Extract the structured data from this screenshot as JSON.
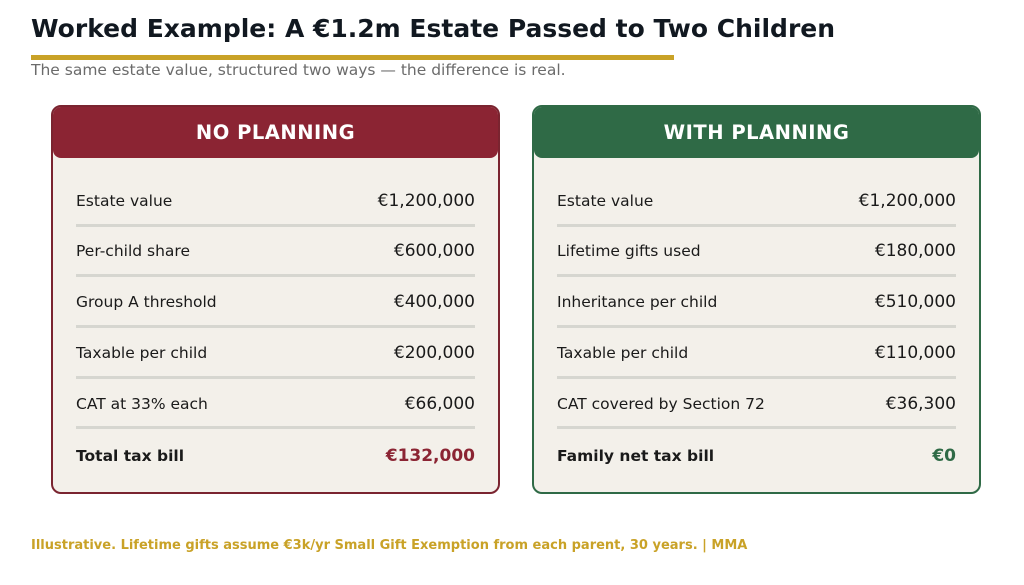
{
  "title": "Worked Example: A €1.2m Estate Passed to Two Children",
  "subtitle": "The same estate value, structured two ways — the difference is real.",
  "colors": {
    "accent_gold": "#c9a227",
    "no_planning_red": "#8b2433",
    "with_planning_green": "#2f6a46",
    "card_background": "#f3f0ea"
  },
  "no_planning": {
    "header": "NO PLANNING",
    "rows": [
      {
        "label": "Estate value",
        "value": "€1,200,000"
      },
      {
        "label": "Per-child share",
        "value": "€600,000"
      },
      {
        "label": "Group A threshold",
        "value": "€400,000"
      },
      {
        "label": "Taxable per child",
        "value": "€200,000"
      },
      {
        "label": "CAT at 33% each",
        "value": "€66,000"
      }
    ],
    "total": {
      "label": "Total tax bill",
      "value": "€132,000"
    }
  },
  "with_planning": {
    "header": "WITH PLANNING",
    "rows": [
      {
        "label": "Estate value",
        "value": "€1,200,000"
      },
      {
        "label": "Lifetime gifts used",
        "value": "€180,000"
      },
      {
        "label": "Inheritance per child",
        "value": "€510,000"
      },
      {
        "label": "Taxable per child",
        "value": "€110,000"
      },
      {
        "label": "CAT covered by Section 72",
        "value": "€36,300"
      }
    ],
    "total": {
      "label": "Family net tax bill",
      "value": "€0"
    }
  },
  "footer": "Illustrative. Lifetime gifts assume €3k/yr Small Gift Exemption from each parent, 30 years.  |  MMA"
}
